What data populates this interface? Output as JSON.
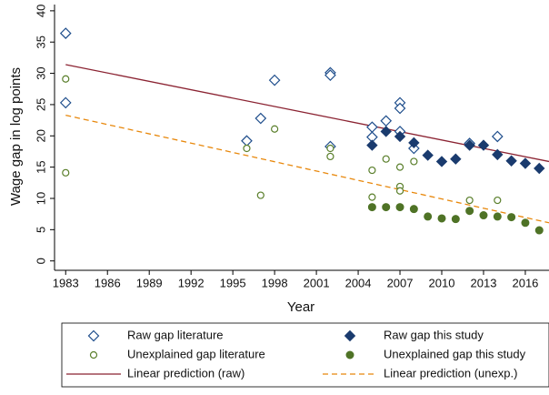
{
  "chart_data": {
    "type": "scatter",
    "xlabel": "Year",
    "ylabel": "Wage gap in log points",
    "xlim": [
      1982.2,
      2017.7
    ],
    "ylim": [
      -1.5,
      41
    ],
    "xticks": [
      1983,
      1986,
      1989,
      1992,
      1995,
      1998,
      2001,
      2004,
      2007,
      2010,
      2013,
      2016
    ],
    "yticks": [
      0,
      5,
      10,
      15,
      20,
      25,
      30,
      35,
      40
    ],
    "grid": false,
    "legend": "bottom",
    "series": [
      {
        "name": "Raw gap literature",
        "type": "scatter",
        "marker": "diamond-open",
        "color": "#1f4e8c",
        "x": [
          1983,
          1983,
          1996,
          1997,
          1998,
          2002,
          2002,
          2002,
          2005,
          2005,
          2006,
          2007,
          2007,
          2007,
          2008,
          2012,
          2014
        ],
        "values": [
          36.4,
          25.3,
          19.2,
          22.8,
          28.9,
          30.1,
          29.7,
          18.3,
          21.4,
          19.8,
          22.4,
          25.3,
          24.4,
          20.7,
          18.0,
          18.8,
          19.9
        ]
      },
      {
        "name": "Raw gap this study",
        "type": "scatter",
        "marker": "diamond",
        "color": "#1a3b6e",
        "x": [
          2005,
          2006,
          2007,
          2008,
          2009,
          2010,
          2011,
          2012,
          2013,
          2014,
          2015,
          2016,
          2017
        ],
        "values": [
          18.5,
          20.7,
          19.9,
          18.9,
          16.9,
          15.9,
          16.3,
          18.5,
          18.5,
          17.0,
          16.0,
          15.6,
          14.8
        ]
      },
      {
        "name": "Unexplained gap literature",
        "type": "scatter",
        "marker": "circle-open",
        "color": "#5a7f2b",
        "x": [
          1983,
          1983,
          1996,
          1997,
          1998,
          2002,
          2002,
          2005,
          2005,
          2006,
          2007,
          2007,
          2007,
          2008,
          2012,
          2014
        ],
        "values": [
          29.1,
          14.1,
          18.0,
          10.5,
          21.1,
          18.0,
          16.7,
          14.5,
          10.2,
          16.3,
          15.0,
          11.9,
          11.2,
          15.9,
          9.7,
          9.7
        ]
      },
      {
        "name": "Unexplained gap this study",
        "type": "scatter",
        "marker": "circle",
        "color": "#4f7326",
        "x": [
          2005,
          2006,
          2007,
          2008,
          2009,
          2010,
          2011,
          2012,
          2013,
          2014,
          2015,
          2016,
          2017
        ],
        "values": [
          8.6,
          8.6,
          8.6,
          8.3,
          7.1,
          6.8,
          6.7,
          8.0,
          7.3,
          7.1,
          7.0,
          6.1,
          4.9
        ]
      },
      {
        "name": "Linear prediction (raw)",
        "type": "line",
        "dashed": false,
        "color": "#8b2332",
        "x": [
          1983,
          2017.7
        ],
        "values": [
          31.4,
          15.9
        ]
      },
      {
        "name": "Linear prediction (unexp.)",
        "type": "line",
        "dashed": true,
        "color": "#e8880c",
        "x": [
          1983,
          2017.7
        ],
        "values": [
          23.3,
          6.1
        ]
      }
    ]
  }
}
